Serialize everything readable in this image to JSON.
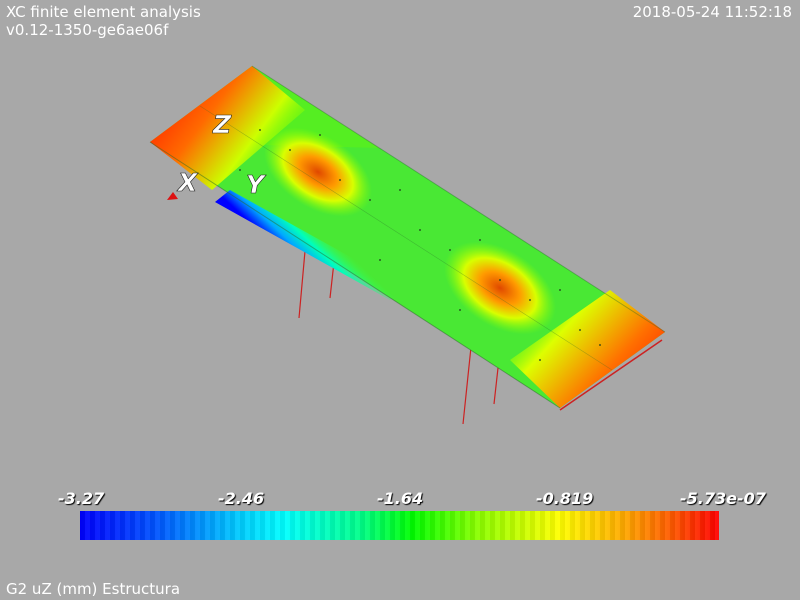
{
  "header": {
    "title": "XC finite element analysis",
    "version": "v0.12-1350-ge6ae06f",
    "timestamp": "2018-05-24 11:52:18"
  },
  "axes_labels": {
    "x": "X",
    "y": "Y",
    "z": "Z"
  },
  "legend": {
    "ticks": [
      "-3.27",
      "-2.46",
      "-1.64",
      "-0.819",
      "-5.73e-07"
    ],
    "min": -3.27,
    "max": -5.73e-07,
    "colormap": "blue-cyan-green-yellow-red"
  },
  "caption": "G2 uZ (mm) Estructura",
  "colors": {
    "background": "#a8a8a8",
    "max_deformation": "#0000ff",
    "min_deformation": "#ff0000",
    "support_lines": "#cc2222"
  }
}
